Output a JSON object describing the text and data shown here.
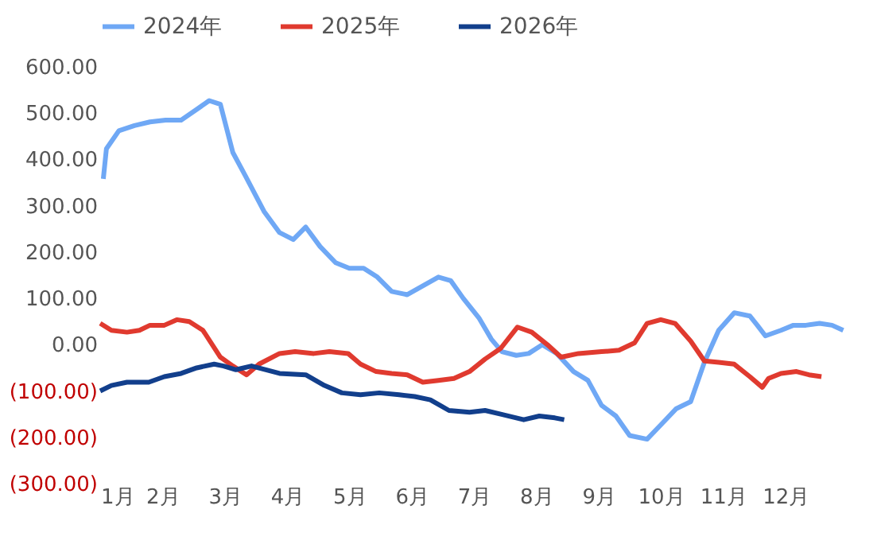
{
  "chart_data": {
    "type": "line",
    "legend": "top",
    "grid": false,
    "marker": "none",
    "line_style": "solid",
    "xlim": [
      1,
      13
    ],
    "xticks": [
      {
        "value": 1,
        "label": "1月"
      },
      {
        "value": 2,
        "label": "2月"
      },
      {
        "value": 3,
        "label": "3月"
      },
      {
        "value": 4,
        "label": "4月"
      },
      {
        "value": 5,
        "label": "5月"
      },
      {
        "value": 6,
        "label": "6月"
      },
      {
        "value": 7,
        "label": "7月"
      },
      {
        "value": 8,
        "label": "8月"
      },
      {
        "value": 9,
        "label": "9月"
      },
      {
        "value": 10,
        "label": "10月"
      },
      {
        "value": 11,
        "label": "11月"
      },
      {
        "value": 12,
        "label": "12月"
      }
    ],
    "ylim": [
      -300,
      600
    ],
    "yticks": [
      {
        "value": -300,
        "label": "(300.00)"
      },
      {
        "value": -200,
        "label": "(200.00)"
      },
      {
        "value": -100,
        "label": "(100.00)"
      },
      {
        "value": 0,
        "label": "0.00"
      },
      {
        "value": 100,
        "label": "100.00"
      },
      {
        "value": 200,
        "label": "200.00"
      },
      {
        "value": 300,
        "label": "300.00"
      },
      {
        "value": 400,
        "label": "400.00"
      },
      {
        "value": 500,
        "label": "500.00"
      },
      {
        "value": 600,
        "label": "600.00"
      }
    ],
    "series": [
      {
        "name": "2024年",
        "color": "#6fa8f5",
        "x": [
          1.05,
          1.1,
          1.3,
          1.55,
          1.8,
          2.05,
          2.3,
          2.55,
          2.75,
          2.93,
          3.13,
          3.33,
          3.63,
          3.88,
          4.1,
          4.3,
          4.53,
          4.78,
          5.0,
          5.23,
          5.45,
          5.68,
          5.93,
          6.18,
          6.43,
          6.63,
          6.83,
          7.08,
          7.28,
          7.45,
          7.68,
          7.88,
          8.1,
          8.33,
          8.6,
          8.83,
          9.05,
          9.28,
          9.5,
          9.78,
          10.03,
          10.25,
          10.48,
          10.7,
          10.93,
          11.18,
          11.43,
          11.55,
          11.68,
          11.93,
          12.13,
          12.33,
          12.55,
          12.75,
          12.93
        ],
        "values": [
          358,
          423,
          462,
          473,
          481,
          485,
          485,
          508,
          527,
          519,
          415,
          365,
          288,
          242,
          227,
          254,
          212,
          177,
          165,
          165,
          146,
          115,
          108,
          127,
          146,
          138,
          100,
          58,
          12,
          -15,
          -23,
          -19,
          0,
          -19,
          -58,
          -77,
          -131,
          -154,
          -196,
          -204,
          -169,
          -138,
          -123,
          -38,
          31,
          69,
          62,
          42,
          19,
          31,
          42,
          42,
          46,
          42,
          31
        ]
      },
      {
        "name": "2025年",
        "color": "#e03a2f",
        "x": [
          1.0,
          1.18,
          1.43,
          1.63,
          1.8,
          2.03,
          2.23,
          2.43,
          2.65,
          2.93,
          3.13,
          3.35,
          3.55,
          3.88,
          4.13,
          4.43,
          4.68,
          4.98,
          5.18,
          5.43,
          5.68,
          5.93,
          6.18,
          6.43,
          6.68,
          6.93,
          7.18,
          7.43,
          7.7,
          7.93,
          8.18,
          8.4,
          8.68,
          9.05,
          9.33,
          9.58,
          9.78,
          10.0,
          10.23,
          10.48,
          10.7,
          10.93,
          11.18,
          11.43,
          11.63,
          11.73,
          11.93,
          12.18,
          12.38,
          12.58
        ],
        "values": [
          46,
          31,
          27,
          31,
          42,
          42,
          54,
          50,
          31,
          -27,
          -46,
          -65,
          -42,
          -19,
          -15,
          -19,
          -15,
          -19,
          -42,
          -58,
          -62,
          -65,
          -81,
          -77,
          -73,
          -58,
          -31,
          -8,
          38,
          27,
          0,
          -27,
          -19,
          -15,
          -12,
          4,
          46,
          54,
          46,
          8,
          -35,
          -38,
          -42,
          -69,
          -92,
          -73,
          -62,
          -58,
          -65,
          -69
        ]
      },
      {
        "name": "2026年",
        "color": "#123f8c",
        "x": [
          1.0,
          1.18,
          1.43,
          1.78,
          2.03,
          2.3,
          2.55,
          2.83,
          2.98,
          3.18,
          3.43,
          3.88,
          4.3,
          4.6,
          4.88,
          5.18,
          5.48,
          5.8,
          6.05,
          6.3,
          6.6,
          6.93,
          7.18,
          7.43,
          7.8,
          8.05,
          8.3,
          8.45
        ],
        "values": [
          -100,
          -88,
          -81,
          -81,
          -69,
          -62,
          -50,
          -42,
          -46,
          -54,
          -46,
          -62,
          -65,
          -88,
          -104,
          -108,
          -104,
          -108,
          -112,
          -119,
          -142,
          -146,
          -142,
          -150,
          -162,
          -154,
          -158,
          -162
        ]
      }
    ]
  }
}
